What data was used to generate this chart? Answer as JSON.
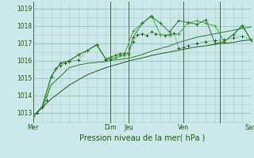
{
  "bg_color": "#cce8e8",
  "grid_minor_color": "#aad4d4",
  "grid_major_color": "#88bbbb",
  "vline_color": "#446644",
  "line_dark": "#1a5c1a",
  "line_mid": "#2e7d2e",
  "line_light": "#4aaa4a",
  "xlabel": "Pression niveau de la mer( hPa )",
  "xlabel_fontsize": 7,
  "tick_fontsize": 5.5,
  "ylim": [
    1012.4,
    1019.4
  ],
  "yticks": [
    1013,
    1014,
    1015,
    1016,
    1017,
    1018,
    1019
  ],
  "xlim": [
    0,
    24
  ],
  "major_vlines": [
    0,
    8.5,
    10.5,
    16.5,
    20.5
  ],
  "xtick_pos": [
    0,
    8.5,
    10.5,
    16.5,
    20.5,
    24
  ],
  "xtick_labels": [
    "Mer",
    "Dim",
    "Jeu",
    "Ven",
    "",
    "Sam"
  ],
  "s1_x": [
    0,
    1,
    2,
    3,
    4,
    5,
    6,
    7,
    8,
    9,
    10,
    11,
    12,
    13,
    14,
    15,
    16,
    17,
    18,
    19,
    20,
    21,
    22,
    23,
    24
  ],
  "s1_y": [
    1012.8,
    1013.3,
    1013.8,
    1014.2,
    1014.6,
    1014.9,
    1015.2,
    1015.4,
    1015.6,
    1015.75,
    1015.9,
    1016.05,
    1016.15,
    1016.3,
    1016.4,
    1016.5,
    1016.6,
    1016.7,
    1016.8,
    1016.85,
    1016.95,
    1017.0,
    1017.05,
    1017.15,
    1017.2
  ],
  "s2_x": [
    0,
    1,
    2,
    3,
    4,
    5,
    6,
    7,
    8,
    9,
    10,
    11,
    12,
    13,
    14,
    15,
    16,
    17,
    18,
    19,
    20,
    21,
    22,
    23,
    24
  ],
  "s2_y": [
    1012.8,
    1013.3,
    1014.6,
    1015.1,
    1015.6,
    1015.75,
    1015.85,
    1015.9,
    1015.95,
    1016.05,
    1016.1,
    1016.2,
    1016.35,
    1016.55,
    1016.7,
    1016.85,
    1017.05,
    1017.2,
    1017.35,
    1017.45,
    1017.55,
    1017.65,
    1017.75,
    1017.85,
    1017.95
  ],
  "s3_x": [
    0,
    0.5,
    1,
    1.5,
    2,
    2.5,
    3,
    3.5,
    4,
    5,
    6,
    7,
    8,
    8.5,
    9,
    9.5,
    10,
    10.5,
    11,
    11.5,
    12,
    12.5,
    13,
    13.5,
    14,
    14.5,
    15,
    15.5,
    16,
    16.5,
    17,
    18,
    19,
    20,
    21,
    22,
    23,
    24
  ],
  "s3_y": [
    1012.8,
    1013.0,
    1013.3,
    1013.7,
    1015.1,
    1015.55,
    1015.7,
    1015.85,
    1015.95,
    1016.05,
    1016.6,
    1016.9,
    1016.05,
    1016.1,
    1016.15,
    1016.3,
    1016.3,
    1016.35,
    1017.1,
    1017.5,
    1017.55,
    1017.45,
    1017.65,
    1017.55,
    1017.5,
    1017.45,
    1017.55,
    1017.6,
    1016.7,
    1016.75,
    1016.85,
    1017.0,
    1017.1,
    1017.15,
    1017.2,
    1017.3,
    1017.4,
    1017.2
  ],
  "s4_x": [
    0,
    1,
    2,
    3,
    4,
    5,
    6,
    7,
    8,
    9,
    10,
    11,
    12,
    13,
    14,
    15,
    16,
    17,
    18,
    19,
    20,
    21,
    22,
    23,
    24
  ],
  "s4_y": [
    1012.8,
    1013.35,
    1015.1,
    1015.85,
    1016.0,
    1016.35,
    1016.6,
    1016.95,
    1016.1,
    1016.15,
    1016.3,
    1017.7,
    1018.15,
    1018.6,
    1017.5,
    1017.45,
    1017.55,
    1018.15,
    1018.3,
    1018.15,
    1018.0,
    1017.1,
    1017.5,
    1018.05,
    1017.15
  ],
  "s5_x": [
    0,
    1,
    2,
    3,
    4,
    5,
    6,
    7,
    8,
    8.5,
    9,
    9.5,
    10,
    10.5,
    11,
    12,
    13,
    14,
    15,
    16,
    17,
    18,
    19,
    20,
    21,
    22,
    23,
    24
  ],
  "s5_y": [
    1012.8,
    1013.35,
    1015.1,
    1015.85,
    1016.0,
    1016.35,
    1016.6,
    1016.9,
    1016.1,
    1016.2,
    1016.3,
    1016.4,
    1016.4,
    1016.45,
    1017.35,
    1018.15,
    1018.55,
    1018.15,
    1017.65,
    1018.3,
    1018.2,
    1018.1,
    1018.35,
    1017.0,
    1017.1,
    1017.5,
    1018.0,
    1017.15
  ]
}
